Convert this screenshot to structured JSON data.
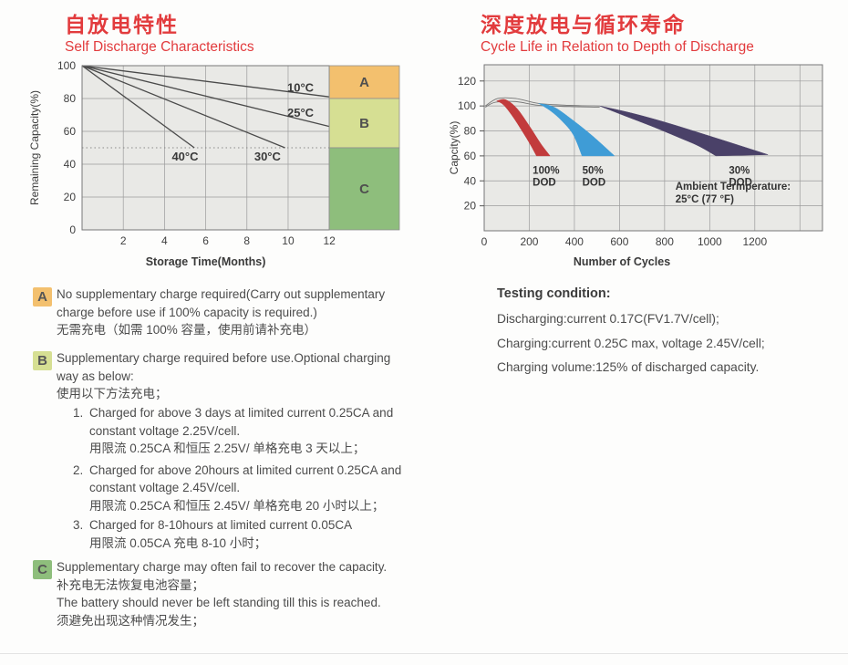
{
  "headers": {
    "accent": "#e23b3d",
    "left": {
      "zh": "自放电特性",
      "en": "Self Discharge Characteristics"
    },
    "right": {
      "zh": "深度放电与循环寿命",
      "en": "Cycle Life in Relation to Depth of Discharge"
    }
  },
  "chart_data": [
    {
      "id": "self_discharge",
      "type": "line",
      "title": "Self Discharge Characteristics",
      "xlabel": "Storage Time(Months)",
      "ylabel": "Remaining Capacity(%)",
      "xlim": [
        0,
        15.4
      ],
      "data_xmax": 12,
      "ylim": [
        0,
        100
      ],
      "xticks": [
        2,
        4,
        6,
        8,
        10,
        12
      ],
      "yticks": [
        0,
        20,
        40,
        60,
        80,
        100
      ],
      "dashed_line_y": 50,
      "plot_bg": "#e9e9e6",
      "grid_color": "#9c9c9c",
      "border_color": "#787878",
      "line_color": "#4a4a4a",
      "series": [
        {
          "name": "10°C",
          "points": [
            [
              0,
              100
            ],
            [
              12,
              81
            ]
          ],
          "label_at": [
            10.6,
            86.5
          ]
        },
        {
          "name": "25°C",
          "points": [
            [
              0,
              100
            ],
            [
              12,
              63
            ]
          ],
          "label_at": [
            10.6,
            71
          ]
        },
        {
          "name": "30°C",
          "points": [
            [
              0,
              100
            ],
            [
              9.85,
              50
            ]
          ],
          "label_at": [
            9.0,
            44.5
          ]
        },
        {
          "name": "40°C",
          "points": [
            [
              0,
              100
            ],
            [
              5.45,
              50
            ]
          ],
          "label_at": [
            5.0,
            44.5
          ]
        }
      ],
      "zones": [
        {
          "label": "A",
          "y_from": 80,
          "y_to": 100,
          "color": "#f3c06e"
        },
        {
          "label": "B",
          "y_from": 50,
          "y_to": 80,
          "color": "#d6df93"
        },
        {
          "label": "C",
          "y_from": 0,
          "y_to": 50,
          "color": "#8ebe7c"
        }
      ]
    },
    {
      "id": "cycle_life",
      "type": "area",
      "title": "Cycle Life in Relation to Depth of Discharge",
      "xlabel": "Number of Cycles",
      "ylabel": "Capcity(%)",
      "xlim": [
        0,
        1500
      ],
      "ylim": [
        0,
        133
      ],
      "grid_xticks": [
        0,
        200,
        400,
        600,
        800,
        1000,
        1200,
        1400
      ],
      "xtick_labels": [
        0,
        200,
        400,
        600,
        800,
        1000,
        1200
      ],
      "yticks": [
        20,
        40,
        60,
        80,
        100,
        120
      ],
      "plot_bg": "#e9e9e6",
      "grid_color": "#9c9c9c",
      "border_color": "#787878",
      "envelope_color": "#777777",
      "envelopes": [
        [
          [
            5,
            100
          ],
          [
            60,
            106
          ],
          [
            140,
            106
          ],
          [
            242,
            102
          ],
          [
            380,
            100.5
          ],
          [
            512,
            100
          ]
        ],
        [
          [
            5,
            99
          ],
          [
            50,
            103
          ],
          [
            140,
            103.5
          ],
          [
            242,
            100.5
          ],
          [
            380,
            99.5
          ],
          [
            512,
            99
          ]
        ]
      ],
      "bands": [
        {
          "name": "100% DOD",
          "color": "#c23b3c",
          "upper": [
            [
              55,
              104
            ],
            [
              95,
              105
            ],
            [
              145,
              98
            ],
            [
              200,
              84
            ],
            [
              250,
              70
            ],
            [
              292,
              60
            ]
          ],
          "lower": [
            [
              55,
              104
            ],
            [
              85,
              101
            ],
            [
              125,
              92
            ],
            [
              168,
              80
            ],
            [
              205,
              69
            ],
            [
              232,
              60
            ]
          ],
          "label_lines": [
            "100%",
            "DOD"
          ],
          "label_at": [
            215,
            45.5
          ]
        },
        {
          "name": "50% DOD",
          "color": "#3f9cd6",
          "upper": [
            [
              242,
              102
            ],
            [
              310,
              99
            ],
            [
              390,
              89
            ],
            [
              480,
              76
            ],
            [
              578,
              60
            ]
          ],
          "lower": [
            [
              242,
              102
            ],
            [
              295,
              96
            ],
            [
              345,
              88
            ],
            [
              395,
              77
            ],
            [
              434,
              60
            ]
          ],
          "label_lines": [
            "50%",
            "DOD"
          ],
          "label_at": [
            435,
            45.5
          ]
        },
        {
          "name": "30% DOD",
          "color": "#4a4168",
          "upper": [
            [
              512,
              100
            ],
            [
              660,
              94
            ],
            [
              820,
              86
            ],
            [
              980,
              77
            ],
            [
              1120,
              69
            ],
            [
              1258,
              61
            ]
          ],
          "lower": [
            [
              512,
              100
            ],
            [
              625,
              92
            ],
            [
              740,
              84
            ],
            [
              860,
              75
            ],
            [
              950,
              68
            ],
            [
              1028,
              60
            ]
          ],
          "label_lines": [
            "30%",
            "DOD"
          ],
          "label_at": [
            1085,
            45.5
          ]
        }
      ],
      "annotation": {
        "lines": [
          "Ambient Termperature:",
          "25°C (77 °F)"
        ],
        "at": [
          848,
          33
        ]
      }
    }
  ],
  "notes": {
    "a": {
      "badge": "A",
      "badge_color": "#f3c06e",
      "lines": [
        "No supplementary charge required(Carry out supplementary",
        "charge before use if 100% capacity is required.)",
        "无需充电（如需 100% 容量，使用前请补充电）"
      ]
    },
    "b": {
      "badge": "B",
      "badge_color": "#d6df93",
      "lines": [
        "Supplementary charge required before use.Optional charging",
        "way as below:",
        "使用以下方法充电；"
      ]
    },
    "steps": [
      {
        "num": "1.",
        "lines": [
          "Charged for above 3 days at limited current 0.25CA and",
          "constant voltage 2.25V/cell.",
          "用限流 0.25CA 和恒压 2.25V/ 单格充电 3 天以上；"
        ]
      },
      {
        "num": "2.",
        "lines": [
          "Charged for above 20hours at limited current 0.25CA and",
          "constant voltage 2.45V/cell.",
          "用限流 0.25CA 和恒压 2.45V/ 单格充电 20 小时以上；"
        ]
      },
      {
        "num": "3.",
        "lines": [
          "Charged for 8-10hours at limited current 0.05CA",
          "用限流 0.05CA 充电 8-10 小时；"
        ]
      }
    ],
    "c": {
      "badge": "C",
      "badge_color": "#8ebe7c",
      "lines": [
        "Supplementary charge may often fail to recover the capacity.",
        "补充电无法恢复电池容量；",
        "The battery should never be left standing till this is reached.",
        "须避免出现这种情况发生；"
      ]
    }
  },
  "testing": {
    "title": "Testing condition:",
    "lines": [
      "Discharging:current 0.17C(FV1.7V/cell);",
      "Charging:current 0.25C max, voltage 2.45V/cell;",
      "Charging volume:125% of discharged capacity."
    ]
  }
}
